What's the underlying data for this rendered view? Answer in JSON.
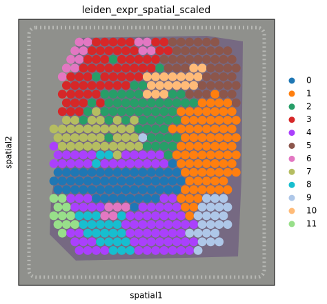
{
  "chart_data": {
    "type": "spatial",
    "title": "leiden_expr_spatial_scaled",
    "xlabel": "spatial1",
    "ylabel": "spatial2",
    "categories": [
      "0",
      "1",
      "2",
      "3",
      "4",
      "5",
      "6",
      "7",
      "8",
      "9",
      "10",
      "11"
    ],
    "colors": [
      "#1f77b4",
      "#ff7f0e",
      "#279e68",
      "#d62728",
      "#aa40fc",
      "#8c564b",
      "#e377c2",
      "#b5bd61",
      "#17becf",
      "#aec7e8",
      "#ffbb78",
      "#98df8a"
    ],
    "spots": [
      [
        null,
        null,
        null,
        6,
        6,
        3,
        3,
        3,
        3,
        3,
        6,
        6,
        3,
        3,
        5,
        5,
        5,
        5,
        5,
        5,
        null,
        null
      ],
      [
        null,
        null,
        6,
        6,
        3,
        3,
        3,
        3,
        3,
        3,
        6,
        6,
        3,
        3,
        5,
        5,
        5,
        5,
        5,
        5,
        5,
        null
      ],
      [
        null,
        null,
        6,
        6,
        3,
        3,
        3,
        2,
        3,
        3,
        3,
        3,
        3,
        5,
        5,
        5,
        5,
        5,
        5,
        5,
        5,
        5
      ],
      [
        null,
        6,
        6,
        3,
        3,
        3,
        3,
        3,
        3,
        3,
        3,
        3,
        2,
        5,
        5,
        5,
        10,
        10,
        5,
        5,
        5,
        5
      ],
      [
        null,
        6,
        3,
        3,
        3,
        2,
        3,
        3,
        3,
        3,
        3,
        10,
        10,
        10,
        10,
        10,
        10,
        10,
        5,
        5,
        5,
        5
      ],
      [
        null,
        3,
        3,
        3,
        3,
        3,
        3,
        3,
        3,
        2,
        2,
        10,
        10,
        10,
        10,
        10,
        10,
        5,
        5,
        5,
        5,
        5
      ],
      [
        null,
        3,
        3,
        3,
        3,
        3,
        2,
        2,
        2,
        2,
        2,
        10,
        10,
        10,
        2,
        2,
        5,
        5,
        5,
        1,
        5,
        5
      ],
      [
        null,
        3,
        3,
        3,
        2,
        3,
        2,
        2,
        2,
        2,
        2,
        2,
        2,
        2,
        2,
        2,
        2,
        1,
        1,
        1,
        1,
        5
      ],
      [
        null,
        3,
        3,
        3,
        2,
        7,
        2,
        2,
        2,
        2,
        2,
        2,
        2,
        2,
        2,
        1,
        1,
        1,
        1,
        1,
        1,
        1
      ],
      [
        null,
        7,
        7,
        2,
        7,
        7,
        2,
        7,
        2,
        7,
        2,
        2,
        2,
        2,
        2,
        1,
        1,
        1,
        1,
        1,
        1,
        1
      ],
      [
        7,
        7,
        7,
        7,
        7,
        7,
        7,
        7,
        7,
        7,
        2,
        2,
        2,
        2,
        1,
        1,
        1,
        1,
        1,
        1,
        1,
        1
      ],
      [
        7,
        7,
        7,
        7,
        7,
        7,
        2,
        7,
        7,
        7,
        9,
        2,
        2,
        2,
        2,
        1,
        1,
        1,
        1,
        1,
        1,
        1
      ],
      [
        4,
        7,
        7,
        7,
        7,
        7,
        7,
        7,
        7,
        7,
        7,
        2,
        2,
        2,
        2,
        1,
        1,
        1,
        1,
        1,
        1,
        1
      ],
      [
        4,
        4,
        4,
        4,
        4,
        8,
        8,
        7,
        4,
        4,
        4,
        4,
        4,
        2,
        1,
        1,
        1,
        1,
        1,
        1,
        1,
        1
      ],
      [
        4,
        4,
        4,
        4,
        4,
        8,
        4,
        4,
        4,
        4,
        4,
        4,
        4,
        4,
        0,
        1,
        1,
        1,
        1,
        1,
        1,
        1
      ],
      [
        0,
        0,
        0,
        0,
        0,
        0,
        0,
        0,
        0,
        0,
        0,
        0,
        0,
        0,
        0,
        1,
        1,
        1,
        1,
        1,
        1,
        1
      ],
      [
        0,
        0,
        0,
        0,
        0,
        0,
        0,
        0,
        0,
        0,
        0,
        0,
        0,
        0,
        0,
        0,
        1,
        1,
        1,
        1,
        1,
        null
      ],
      [
        0,
        0,
        0,
        0,
        0,
        0,
        0,
        0,
        0,
        0,
        0,
        0,
        0,
        0,
        0,
        1,
        1,
        1,
        1,
        1,
        1,
        null
      ],
      [
        11,
        11,
        4,
        4,
        4,
        0,
        0,
        0,
        0,
        0,
        0,
        0,
        0,
        4,
        4,
        1,
        1,
        1,
        9,
        9,
        9,
        null
      ],
      [
        11,
        11,
        4,
        4,
        4,
        4,
        6,
        6,
        6,
        0,
        4,
        4,
        4,
        4,
        4,
        1,
        1,
        9,
        9,
        9,
        9,
        null
      ],
      [
        11,
        11,
        11,
        8,
        8,
        8,
        6,
        6,
        8,
        4,
        4,
        4,
        4,
        4,
        4,
        4,
        1,
        9,
        9,
        9,
        9,
        null
      ],
      [
        11,
        11,
        11,
        8,
        8,
        8,
        8,
        8,
        4,
        4,
        4,
        4,
        4,
        4,
        4,
        4,
        4,
        9,
        9,
        9,
        9,
        null
      ],
      [
        null,
        11,
        4,
        4,
        8,
        8,
        8,
        8,
        8,
        4,
        4,
        4,
        4,
        4,
        4,
        4,
        9,
        9,
        9,
        9,
        null,
        null
      ],
      [
        null,
        null,
        4,
        4,
        4,
        8,
        8,
        8,
        8,
        4,
        4,
        4,
        4,
        4,
        4,
        4,
        4,
        9,
        9,
        9,
        null,
        null
      ],
      [
        null,
        null,
        null,
        4,
        4,
        4,
        4,
        8,
        8,
        8,
        4,
        4,
        4,
        4,
        4,
        4,
        4,
        9,
        null,
        null,
        null,
        null
      ]
    ]
  }
}
